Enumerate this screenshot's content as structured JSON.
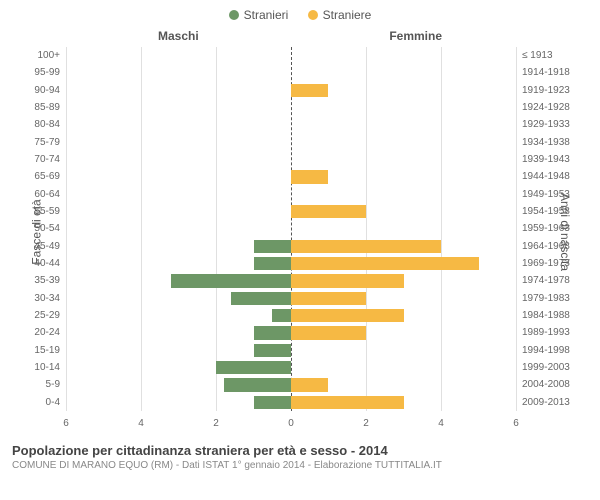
{
  "legend": {
    "male": {
      "label": "Stranieri",
      "color": "#6d9766"
    },
    "female": {
      "label": "Straniere",
      "color": "#f6b944"
    }
  },
  "columns": {
    "left": "Maschi",
    "right": "Femmine"
  },
  "y_labels": {
    "left": "Fasce di età",
    "right": "Anni di nascita"
  },
  "x_axis": {
    "max": 6,
    "ticks": [
      6,
      4,
      2,
      0,
      2,
      4,
      6
    ]
  },
  "grid_color": "#e0e0e0",
  "center_line_color": "#555",
  "background_color": "#ffffff",
  "label_fontsize": 10,
  "axis_fontsize": 12,
  "rows": [
    {
      "age": "100+",
      "birth": "≤ 1913",
      "male": 0,
      "female": 0
    },
    {
      "age": "95-99",
      "birth": "1914-1918",
      "male": 0,
      "female": 0
    },
    {
      "age": "90-94",
      "birth": "1919-1923",
      "male": 0,
      "female": 1
    },
    {
      "age": "85-89",
      "birth": "1924-1928",
      "male": 0,
      "female": 0
    },
    {
      "age": "80-84",
      "birth": "1929-1933",
      "male": 0,
      "female": 0
    },
    {
      "age": "75-79",
      "birth": "1934-1938",
      "male": 0,
      "female": 0
    },
    {
      "age": "70-74",
      "birth": "1939-1943",
      "male": 0,
      "female": 0
    },
    {
      "age": "65-69",
      "birth": "1944-1948",
      "male": 0,
      "female": 1
    },
    {
      "age": "60-64",
      "birth": "1949-1953",
      "male": 0,
      "female": 0
    },
    {
      "age": "55-59",
      "birth": "1954-1958",
      "male": 0,
      "female": 2
    },
    {
      "age": "50-54",
      "birth": "1959-1963",
      "male": 0,
      "female": 0
    },
    {
      "age": "45-49",
      "birth": "1964-1968",
      "male": 1,
      "female": 4
    },
    {
      "age": "40-44",
      "birth": "1969-1973",
      "male": 1,
      "female": 5
    },
    {
      "age": "35-39",
      "birth": "1974-1978",
      "male": 3.2,
      "female": 3
    },
    {
      "age": "30-34",
      "birth": "1979-1983",
      "male": 1.6,
      "female": 2
    },
    {
      "age": "25-29",
      "birth": "1984-1988",
      "male": 0.5,
      "female": 3
    },
    {
      "age": "20-24",
      "birth": "1989-1993",
      "male": 1,
      "female": 2
    },
    {
      "age": "15-19",
      "birth": "1994-1998",
      "male": 1,
      "female": 0
    },
    {
      "age": "10-14",
      "birth": "1999-2003",
      "male": 2,
      "female": 0
    },
    {
      "age": "5-9",
      "birth": "2004-2008",
      "male": 1.8,
      "female": 1
    },
    {
      "age": "0-4",
      "birth": "2009-2013",
      "male": 1,
      "female": 3
    }
  ],
  "footer": {
    "title": "Popolazione per cittadinanza straniera per età e sesso - 2014",
    "subtitle": "COMUNE DI MARANO EQUO (RM) - Dati ISTAT 1° gennaio 2014 - Elaborazione TUTTITALIA.IT"
  }
}
